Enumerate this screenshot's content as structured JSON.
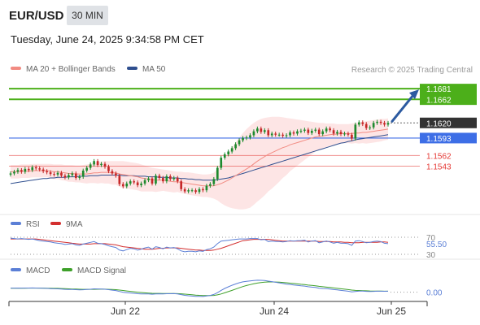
{
  "header": {
    "symbol": "EUR/USD",
    "interval": "30 MIN",
    "datetime": "Tuesday, June 24, 2025 9:34:58 PM CET"
  },
  "legend": {
    "ma20": "MA 20 + Bollinger Bands",
    "ma50": "MA 50",
    "credit": "Research © 2025 Trading Central"
  },
  "colors": {
    "ma20": "#f28b82",
    "ma50": "#2f4f8f",
    "bands": "#fde0e0",
    "bull": "#1e8a2e",
    "bear": "#c62828",
    "target": "#4caf1a",
    "pivot": "#3d6ee6",
    "support": "#e53935",
    "current": "#333333",
    "rsi": "#5b7fd6",
    "rsi_ma": "#d32f2f",
    "macd": "#5b7fd6",
    "macd_signal": "#3ea02a"
  },
  "chart_data": [
    {
      "type": "candlestick",
      "title": "EUR/USD",
      "ylim": [
        1.148,
        1.17
      ],
      "x_ticks": [
        "Jun 22",
        "Jun 24",
        "Jun 25"
      ],
      "levels": [
        {
          "value": 1.1681,
          "label": "1.1681",
          "kind": "target"
        },
        {
          "value": 1.1662,
          "label": "1.1662",
          "kind": "target"
        },
        {
          "value": 1.162,
          "label": "1.1620",
          "kind": "current"
        },
        {
          "value": 1.1593,
          "label": "1.1593",
          "kind": "pivot"
        },
        {
          "value": 1.1562,
          "label": "1.1562",
          "kind": "support"
        },
        {
          "value": 1.1543,
          "label": "1.1543",
          "kind": "support"
        }
      ],
      "close": [
        1.153,
        1.1533,
        1.1536,
        1.1533,
        1.1538,
        1.1536,
        1.1541,
        1.1539,
        1.1537,
        1.1534,
        1.1532,
        1.1529,
        1.1528,
        1.1531,
        1.1526,
        1.1523,
        1.1527,
        1.153,
        1.1522,
        1.1524,
        1.1535,
        1.154,
        1.1546,
        1.1552,
        1.1545,
        1.1547,
        1.1542,
        1.1534,
        1.153,
        1.1526,
        1.1511,
        1.1507,
        1.1512,
        1.1516,
        1.1514,
        1.1509,
        1.1512,
        1.1518,
        1.1521,
        1.1512,
        1.1526,
        1.1522,
        1.1516,
        1.1525,
        1.152,
        1.1522,
        1.1516,
        1.1502,
        1.1498,
        1.15,
        1.15,
        1.1497,
        1.1502,
        1.15,
        1.1508,
        1.1511,
        1.152,
        1.154,
        1.1558,
        1.1564,
        1.1569,
        1.1575,
        1.1582,
        1.1589,
        1.1593,
        1.1594,
        1.1598,
        1.1605,
        1.161,
        1.1604,
        1.1607,
        1.1598,
        1.1601,
        1.1599,
        1.1599,
        1.1597,
        1.1598,
        1.1603,
        1.1601,
        1.1605,
        1.1606,
        1.1608,
        1.1602,
        1.1606,
        1.1608,
        1.16,
        1.1605,
        1.161,
        1.1607,
        1.1601,
        1.1604,
        1.16,
        1.1601,
        1.1599,
        1.1592,
        1.1617,
        1.1621,
        1.1618,
        1.1611,
        1.1612,
        1.162,
        1.1622,
        1.162,
        1.1617,
        1.162
      ],
      "ma20": [
        1.1533,
        1.1533,
        1.1533,
        1.1534,
        1.1534,
        1.1534,
        1.1535,
        1.1535,
        1.1535,
        1.1535,
        1.1535,
        1.1534,
        1.1533,
        1.1533,
        1.1532,
        1.1531,
        1.153,
        1.153,
        1.1529,
        1.1529,
        1.1529,
        1.1529,
        1.153,
        1.1531,
        1.1531,
        1.1532,
        1.1532,
        1.1532,
        1.1531,
        1.1531,
        1.1529,
        1.1528,
        1.1527,
        1.1526,
        1.1525,
        1.1524,
        1.1522,
        1.1521,
        1.152,
        1.1519,
        1.1518,
        1.1518,
        1.1518,
        1.1517,
        1.1516,
        1.1515,
        1.1515,
        1.1514,
        1.1513,
        1.1512,
        1.1511,
        1.151,
        1.1509,
        1.1508,
        1.1508,
        1.1508,
        1.1508,
        1.151,
        1.1512,
        1.1515,
        1.1518,
        1.1522,
        1.1526,
        1.153,
        1.1534,
        1.1538,
        1.1542,
        1.1547,
        1.1552,
        1.1556,
        1.156,
        1.1564,
        1.1567,
        1.157,
        1.1573,
        1.1576,
        1.1578,
        1.1581,
        1.1583,
        1.1585,
        1.1587,
        1.1589,
        1.1591,
        1.1593,
        1.1595,
        1.1596,
        1.1597,
        1.1598,
        1.1599,
        1.16,
        1.16,
        1.1601,
        1.1601,
        1.1601,
        1.1601,
        1.1602,
        1.1602,
        1.1603,
        1.1603,
        1.1604,
        1.1605,
        1.1606,
        1.1607,
        1.1608,
        1.1609
      ],
      "bb_upper": [
        1.1545,
        1.1545,
        1.1545,
        1.1546,
        1.1546,
        1.1546,
        1.1547,
        1.1547,
        1.1547,
        1.1547,
        1.1547,
        1.1547,
        1.1546,
        1.1546,
        1.1546,
        1.1545,
        1.1545,
        1.1545,
        1.1544,
        1.1544,
        1.1545,
        1.1546,
        1.1547,
        1.1549,
        1.155,
        1.1551,
        1.1552,
        1.1552,
        1.1552,
        1.1552,
        1.1552,
        1.1552,
        1.1551,
        1.155,
        1.1549,
        1.1548,
        1.1546,
        1.1544,
        1.1542,
        1.154,
        1.1539,
        1.1538,
        1.1537,
        1.1536,
        1.1535,
        1.1534,
        1.1533,
        1.1533,
        1.1532,
        1.1532,
        1.1531,
        1.153,
        1.1529,
        1.1528,
        1.1528,
        1.1529,
        1.1531,
        1.1538,
        1.1547,
        1.1557,
        1.1566,
        1.1576,
        1.1585,
        1.1594,
        1.1602,
        1.1609,
        1.1615,
        1.162,
        1.1624,
        1.1627,
        1.1629,
        1.163,
        1.1631,
        1.1631,
        1.1631,
        1.163,
        1.1629,
        1.1628,
        1.1627,
        1.1626,
        1.1625,
        1.1624,
        1.1623,
        1.1622,
        1.1621,
        1.162,
        1.162,
        1.1619,
        1.1619,
        1.1619,
        1.1618,
        1.1618,
        1.1618,
        1.1618,
        1.1619,
        1.162,
        1.1621,
        1.1622,
        1.1623,
        1.1624,
        1.1625,
        1.1626,
        1.1627,
        1.1627,
        1.1628
      ],
      "bb_lower": [
        1.1521,
        1.1521,
        1.1521,
        1.1522,
        1.1522,
        1.1522,
        1.1523,
        1.1523,
        1.1523,
        1.1523,
        1.1523,
        1.1521,
        1.152,
        1.152,
        1.1518,
        1.1517,
        1.1515,
        1.1515,
        1.1514,
        1.1514,
        1.1513,
        1.1512,
        1.1513,
        1.1513,
        1.1512,
        1.1513,
        1.1512,
        1.1512,
        1.151,
        1.151,
        1.1506,
        1.1504,
        1.1503,
        1.1502,
        1.1501,
        1.15,
        1.1498,
        1.1498,
        1.1498,
        1.1498,
        1.1497,
        1.1498,
        1.1499,
        1.1498,
        1.1497,
        1.1496,
        1.1497,
        1.1495,
        1.1494,
        1.1492,
        1.1491,
        1.149,
        1.1489,
        1.1488,
        1.1488,
        1.1487,
        1.1485,
        1.1482,
        1.1477,
        1.1473,
        1.147,
        1.1468,
        1.1467,
        1.1466,
        1.1466,
        1.1467,
        1.1469,
        1.1474,
        1.148,
        1.1485,
        1.1491,
        1.1498,
        1.1503,
        1.1509,
        1.1515,
        1.1522,
        1.1527,
        1.1534,
        1.1539,
        1.1544,
        1.1549,
        1.1554,
        1.1559,
        1.1564,
        1.1569,
        1.1572,
        1.1574,
        1.1577,
        1.1579,
        1.1581,
        1.1582,
        1.1584,
        1.1584,
        1.1584,
        1.1583,
        1.1584,
        1.1583,
        1.1584,
        1.1583,
        1.1584,
        1.1585,
        1.1586,
        1.1587,
        1.1589,
        1.159
      ],
      "ma50": [
        1.1512,
        1.1513,
        1.1514,
        1.1515,
        1.1516,
        1.1517,
        1.1518,
        1.1519,
        1.152,
        1.1521,
        1.1521,
        1.1522,
        1.1522,
        1.1523,
        1.1523,
        1.1523,
        1.1524,
        1.1524,
        1.1524,
        1.1525,
        1.1525,
        1.1525,
        1.1526,
        1.1526,
        1.1526,
        1.1527,
        1.1527,
        1.1527,
        1.1527,
        1.1527,
        1.1527,
        1.1526,
        1.1526,
        1.1526,
        1.1526,
        1.1525,
        1.1525,
        1.1525,
        1.1524,
        1.1524,
        1.1524,
        1.1523,
        1.1523,
        1.1523,
        1.1522,
        1.1522,
        1.1522,
        1.1521,
        1.1521,
        1.152,
        1.152,
        1.1519,
        1.1519,
        1.1518,
        1.1518,
        1.1518,
        1.1518,
        1.1519,
        1.152,
        1.1521,
        1.1522,
        1.1524,
        1.1526,
        1.1528,
        1.153,
        1.1532,
        1.1534,
        1.1536,
        1.1538,
        1.154,
        1.1542,
        1.1544,
        1.1546,
        1.1548,
        1.155,
        1.1552,
        1.1554,
        1.1556,
        1.1558,
        1.156,
        1.1562,
        1.1564,
        1.1566,
        1.1568,
        1.157,
        1.1572,
        1.1574,
        1.1576,
        1.1578,
        1.158,
        1.1582,
        1.1584,
        1.1585,
        1.1587,
        1.1588,
        1.159,
        1.1591,
        1.1592,
        1.1593,
        1.1594,
        1.1595,
        1.1596,
        1.1597,
        1.1598,
        1.1599
      ]
    },
    {
      "type": "line",
      "title": "RSI",
      "ylim": [
        30,
        70
      ],
      "y_ticks": [
        30,
        70
      ],
      "last_value": "55.50",
      "series": [
        {
          "name": "RSI",
          "values": [
            68,
            67,
            66,
            67,
            66,
            65,
            66,
            64,
            62,
            61,
            60,
            59,
            57,
            56,
            55,
            53,
            54,
            55,
            52,
            51,
            54,
            56,
            58,
            60,
            56,
            55,
            53,
            50,
            48,
            46,
            40,
            38,
            41,
            44,
            43,
            40,
            42,
            45,
            47,
            42,
            48,
            46,
            43,
            47,
            45,
            46,
            43,
            38,
            36,
            37,
            37,
            36,
            38,
            37,
            41,
            43,
            47,
            55,
            61,
            62,
            63,
            64,
            65,
            66,
            66,
            66,
            67,
            67,
            67,
            64,
            65,
            60,
            61,
            60,
            60,
            59,
            60,
            62,
            61,
            62,
            62,
            63,
            59,
            61,
            62,
            57,
            59,
            61,
            59,
            56,
            58,
            56,
            56,
            55,
            51,
            61,
            62,
            60,
            57,
            58,
            60,
            61,
            60,
            56,
            55
          ]
        },
        {
          "name": "9MA",
          "values": [
            66,
            66,
            66,
            66,
            66,
            66,
            66,
            66,
            65,
            64,
            63,
            62,
            61,
            60,
            59,
            58,
            57,
            56,
            55,
            54,
            54,
            54,
            54,
            55,
            55,
            55,
            55,
            54,
            53,
            52,
            50,
            48,
            47,
            46,
            45,
            44,
            43,
            42,
            42,
            42,
            43,
            44,
            44,
            45,
            45,
            45,
            45,
            44,
            43,
            42,
            41,
            40,
            40,
            39,
            39,
            39,
            40,
            42,
            44,
            47,
            50,
            53,
            56,
            59,
            62,
            63,
            64,
            65,
            65,
            65,
            65,
            65,
            64,
            63,
            62,
            61,
            61,
            61,
            61,
            61,
            61,
            61,
            61,
            61,
            61,
            60,
            60,
            60,
            60,
            59,
            59,
            59,
            58,
            58,
            57,
            57,
            57,
            58,
            58,
            58,
            58,
            58,
            59,
            59,
            58
          ]
        }
      ]
    },
    {
      "type": "line",
      "title": "MACD",
      "last_value": "0.00",
      "series": [
        {
          "name": "MACD",
          "values": [
            0.00055,
            0.00055,
            0.00056,
            0.00055,
            0.00056,
            0.00056,
            0.00057,
            0.00056,
            0.00055,
            0.00053,
            0.00051,
            0.00048,
            0.00046,
            0.00045,
            0.00042,
            0.00039,
            0.00037,
            0.00037,
            0.00034,
            0.00032,
            0.00033,
            0.00036,
            0.0004,
            0.00045,
            0.00044,
            0.00043,
            0.0004,
            0.00034,
            0.00028,
            0.00022,
            0.0001,
            0.0,
            -6e-05,
            -0.0001,
            -0.00014,
            -0.0002,
            -0.00023,
            -0.00023,
            -0.00022,
            -0.00026,
            -0.00022,
            -0.00021,
            -0.00023,
            -0.0002,
            -0.0002,
            -0.00019,
            -0.00022,
            -0.00032,
            -0.00041,
            -0.00047,
            -0.00051,
            -0.00055,
            -0.00055,
            -0.00056,
            -0.0005,
            -0.00043,
            -0.0003,
            -6e-05,
            0.00025,
            0.0005,
            0.00072,
            0.00092,
            0.0011,
            0.00126,
            0.00138,
            0.00145,
            0.00151,
            0.00156,
            0.0016,
            0.00158,
            0.00156,
            0.00148,
            0.00141,
            0.00133,
            0.00125,
            0.00116,
            0.00108,
            0.00103,
            0.00096,
            0.00091,
            0.00086,
            0.00082,
            0.00073,
            0.00068,
            0.00064,
            0.00054,
            0.00049,
            0.00048,
            0.00043,
            0.00035,
            0.00031,
            0.00024,
            0.00019,
            0.00014,
            5e-05,
            0.0001,
            0.00015,
            0.00016,
            0.00012,
            0.0001,
            0.00012,
            0.00014,
            0.00014,
            0.00013,
            0.00014
          ]
        },
        {
          "name": "MACD Signal",
          "values": [
            0.00053,
            0.00054,
            0.00054,
            0.00054,
            0.00054,
            0.00055,
            0.00055,
            0.00055,
            0.00055,
            0.00055,
            0.00054,
            0.00053,
            0.00052,
            0.00051,
            0.00049,
            0.00047,
            0.00045,
            0.00043,
            0.00042,
            0.0004,
            0.00039,
            0.00038,
            0.00038,
            0.00039,
            0.0004,
            0.00041,
            0.00041,
            0.00039,
            0.00037,
            0.00034,
            0.00029,
            0.00023,
            0.00017,
            0.00012,
            6e-05,
            1e-05,
            -4e-05,
            -8e-05,
            -0.00011,
            -0.00014,
            -0.00015,
            -0.00016,
            -0.00017,
            -0.00018,
            -0.00018,
            -0.00018,
            -0.00019,
            -0.00021,
            -0.00025,
            -0.00029,
            -0.00034,
            -0.00038,
            -0.00041,
            -0.00044,
            -0.00045,
            -0.00045,
            -0.00042,
            -0.00035,
            -0.00023,
            -8e-05,
            8e-05,
            0.00025,
            0.00042,
            0.00059,
            0.00075,
            0.00089,
            0.00101,
            0.00112,
            0.00122,
            0.00129,
            0.00134,
            0.00137,
            0.00137,
            0.00136,
            0.00134,
            0.0013,
            0.00126,
            0.00121,
            0.00116,
            0.00111,
            0.00106,
            0.00101,
            0.00095,
            0.0009,
            0.00085,
            0.00079,
            0.00073,
            0.00068,
            0.00063,
            0.00057,
            0.00052,
            0.00046,
            0.00041,
            0.00035,
            0.00029,
            0.00025,
            0.00023,
            0.00021,
            0.00019,
            0.00017,
            0.00016,
            0.00015,
            0.00015,
            0.00014,
            0.00014
          ]
        }
      ]
    }
  ]
}
